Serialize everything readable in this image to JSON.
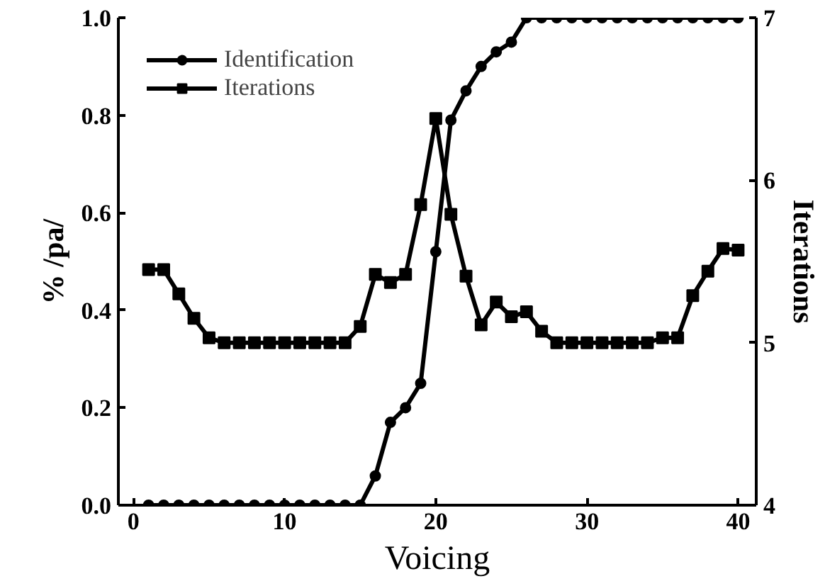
{
  "chart_data": {
    "type": "line",
    "xlabel": "Voicing",
    "ylabel": "% /pa/",
    "y2label": "Iterations",
    "x": [
      1,
      2,
      3,
      4,
      5,
      6,
      7,
      8,
      9,
      10,
      11,
      12,
      13,
      14,
      15,
      16,
      17,
      18,
      19,
      20,
      21,
      22,
      23,
      24,
      25,
      26,
      27,
      28,
      29,
      30,
      31,
      32,
      33,
      34,
      35,
      36,
      37,
      38,
      39,
      40
    ],
    "series": [
      {
        "name": "Identification",
        "color": "#000000",
        "marker": "circle",
        "values": [
          0,
          0,
          0,
          0,
          0,
          0,
          0,
          0,
          0,
          0,
          0,
          0,
          0,
          0,
          0,
          0.06,
          0.17,
          0.2,
          0.25,
          0.52,
          0.79,
          0.85,
          0.9,
          0.93,
          0.95,
          1,
          1,
          1,
          1,
          1,
          1,
          1,
          1,
          1,
          1,
          1,
          1,
          1,
          1,
          1
        ]
      },
      {
        "name": "Iterations",
        "color": "#000000",
        "marker": "square",
        "axis": "y2",
        "values": [
          5.45,
          5.45,
          5.3,
          5.15,
          5.03,
          5.0,
          5.0,
          5.0,
          5.0,
          5.0,
          5.0,
          5.0,
          5.0,
          5.0,
          5.1,
          5.42,
          5.37,
          5.42,
          5.85,
          6.38,
          5.79,
          5.41,
          5.11,
          5.25,
          5.16,
          5.19,
          5.07,
          5.0,
          5.0,
          5.0,
          5.0,
          5.0,
          5.0,
          5.0,
          5.03,
          5.03,
          5.29,
          5.44,
          5.58,
          5.57
        ]
      }
    ],
    "xlim": [
      -1,
      41.2
    ],
    "xticks": [
      0,
      10,
      20,
      30,
      40
    ],
    "ylim": [
      0,
      1
    ],
    "yticks": [
      {
        "value": 0,
        "label": "0.0"
      },
      {
        "value": 0.2,
        "label": "0.2"
      },
      {
        "value": 0.4,
        "label": "0.4"
      },
      {
        "value": 0.6,
        "label": "0.6"
      },
      {
        "value": 0.8,
        "label": "0.8"
      },
      {
        "value": 1,
        "label": "1.0"
      }
    ],
    "y2lim": [
      4,
      7
    ],
    "y2ticks": [
      4,
      5,
      6,
      7
    ],
    "legend": "top left",
    "grid": false,
    "line_style": "solid"
  }
}
